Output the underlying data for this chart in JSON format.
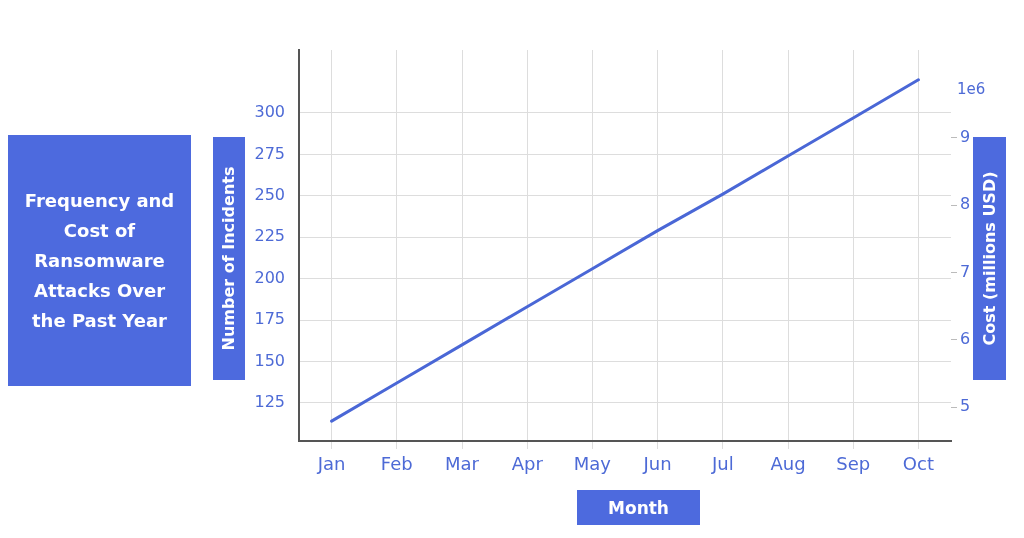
{
  "chart_data": {
    "type": "line",
    "title": "Frequency and Cost of Ransomware Attacks Over the Past Year",
    "xlabel": "Month",
    "ylabel": "Number of Incidents",
    "y2label": "Cost (millions USD)",
    "categories": [
      "Jan",
      "Feb",
      "Mar",
      "Apr",
      "May",
      "Jun",
      "Jul",
      "Aug",
      "Sep",
      "Oct"
    ],
    "series": [
      {
        "color": "#4a67d6",
        "values": [
          114,
          137,
          160,
          183,
          206,
          229,
          251,
          274,
          297,
          320
        ]
      }
    ],
    "ylim": [
      102,
      338
    ],
    "yticks": [
      125,
      150,
      175,
      200,
      225,
      250,
      275,
      300
    ],
    "y2lim": [
      4.5,
      10.3
    ],
    "y2ticks": [
      5,
      6,
      7,
      8,
      9
    ],
    "annotations": [
      "1e6"
    ],
    "grid": true,
    "legend": false,
    "marker": "none",
    "line_style": "solid"
  }
}
